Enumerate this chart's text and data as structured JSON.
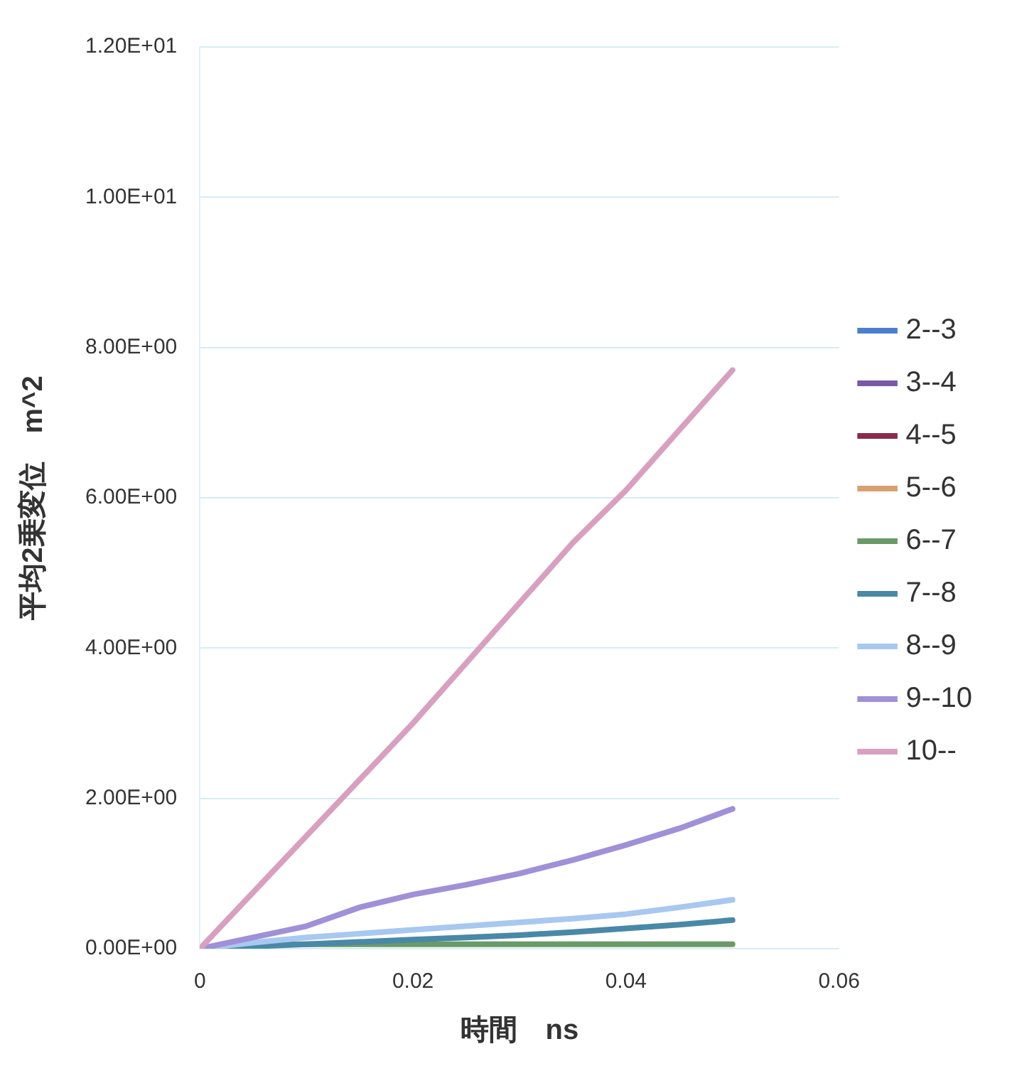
{
  "chart_data": {
    "type": "line",
    "xlabel": "時間　ns",
    "ylabel": "平均2乗変位　m^2",
    "x": [
      0,
      0.005,
      0.01,
      0.015,
      0.02,
      0.025,
      0.03,
      0.035,
      0.04,
      0.045,
      0.05
    ],
    "series": [
      {
        "name": "2--3",
        "color": "#4a7fd0",
        "values": [
          null,
          null,
          null,
          null,
          null,
          null,
          null,
          null,
          null,
          null,
          null
        ]
      },
      {
        "name": "3--4",
        "color": "#7a58a8",
        "values": [
          null,
          null,
          null,
          null,
          null,
          null,
          null,
          null,
          null,
          null,
          null
        ]
      },
      {
        "name": "4--5",
        "color": "#8a2a4a",
        "values": [
          null,
          null,
          null,
          null,
          null,
          null,
          null,
          null,
          null,
          null,
          null
        ]
      },
      {
        "name": "5--6",
        "color": "#d8a070",
        "values": [
          null,
          null,
          null,
          null,
          null,
          null,
          null,
          null,
          null,
          null,
          null
        ]
      },
      {
        "name": "6--7",
        "color": "#6a9a68",
        "values": [
          0,
          0.06,
          0.06,
          0.06,
          0.06,
          0.06,
          0.06,
          0.06,
          0.06,
          0.06,
          0.06
        ]
      },
      {
        "name": "7--8",
        "color": "#4a88a8",
        "values": [
          0,
          0.03,
          0.06,
          0.09,
          0.12,
          0.15,
          0.18,
          0.22,
          0.27,
          0.32,
          0.38
        ]
      },
      {
        "name": "8--9",
        "color": "#a8c8f0",
        "values": [
          0,
          0.08,
          0.15,
          0.2,
          0.25,
          0.3,
          0.35,
          0.4,
          0.46,
          0.55,
          0.65
        ]
      },
      {
        "name": "9--10",
        "color": "#a090d8",
        "values": [
          0,
          0.15,
          0.3,
          0.55,
          0.72,
          0.85,
          1.0,
          1.18,
          1.38,
          1.6,
          1.86
        ]
      },
      {
        "name": "10--",
        "color": "#d8a0c0",
        "values": [
          0,
          0.75,
          1.5,
          2.25,
          3.0,
          3.8,
          4.6,
          5.4,
          6.1,
          6.9,
          7.7
        ]
      }
    ],
    "xlim": [
      0,
      0.06
    ],
    "xticks": [
      0,
      0.02,
      0.04,
      0.06
    ],
    "ylim": [
      0,
      12
    ],
    "yticks": [
      {
        "value": 0,
        "label": "0.00E+00"
      },
      {
        "value": 2,
        "label": "2.00E+00"
      },
      {
        "value": 4,
        "label": "4.00E+00"
      },
      {
        "value": 6,
        "label": "6.00E+00"
      },
      {
        "value": 8,
        "label": "8.00E+00"
      },
      {
        "value": 10,
        "label": "1.00E+01"
      },
      {
        "value": 12,
        "label": "1.20E+01"
      }
    ],
    "grid": "y",
    "legend": "right",
    "marker": "none",
    "line_style": "solid"
  }
}
